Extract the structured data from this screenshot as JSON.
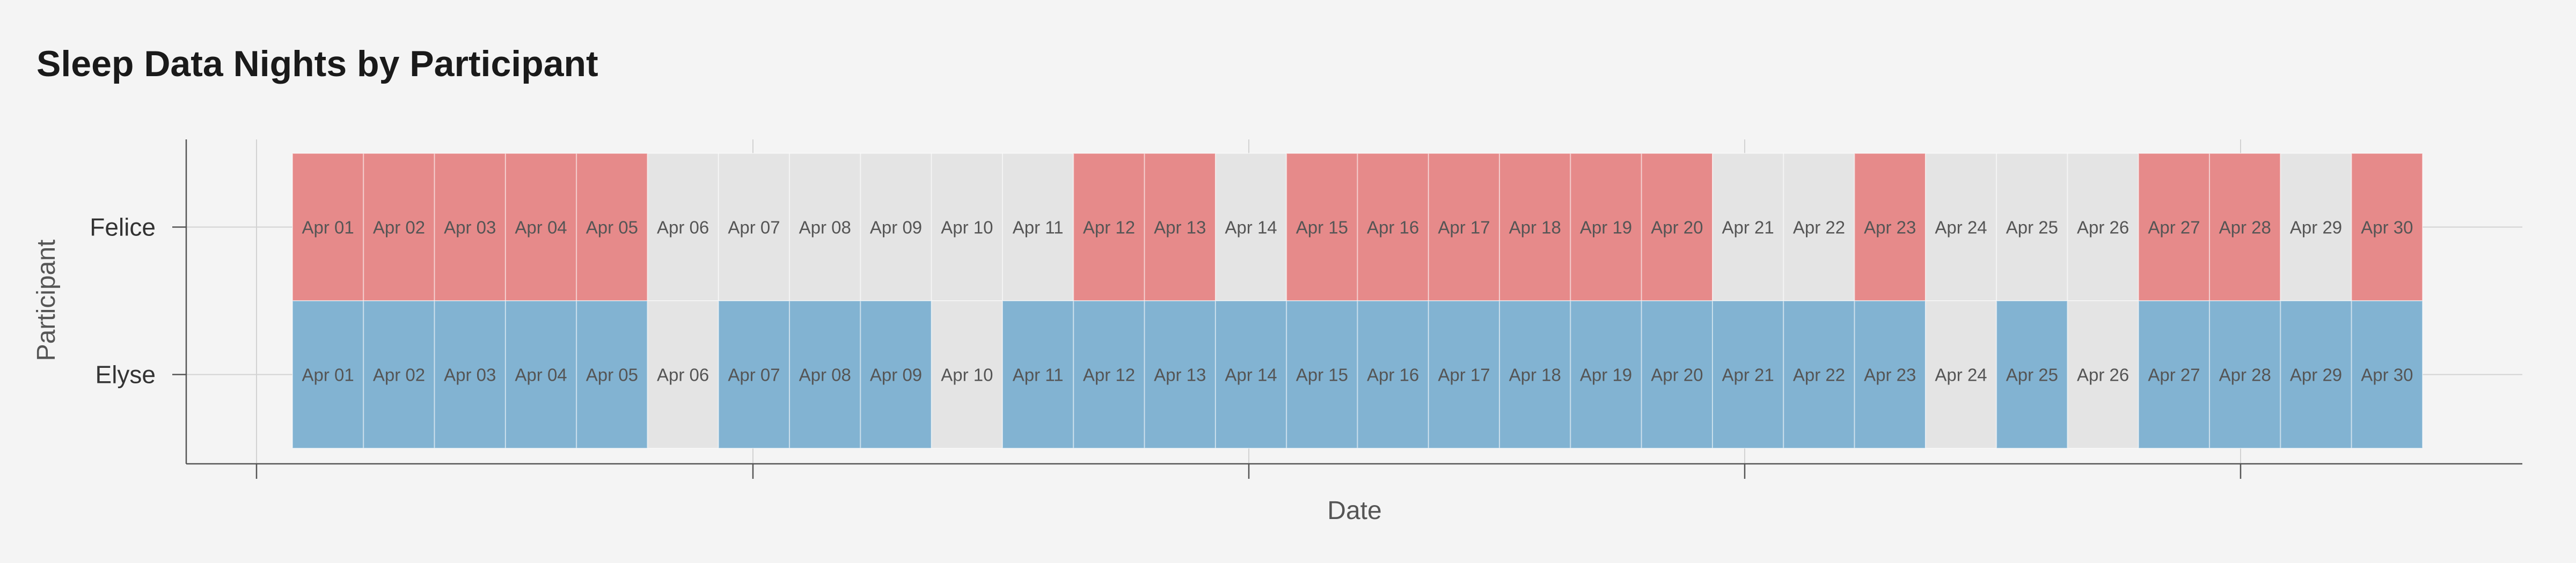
{
  "chart_data": {
    "type": "heatmap",
    "title": "Sleep Data Nights by Participant",
    "xlabel": "Date",
    "ylabel": "Participant",
    "rows": [
      "Felice",
      "Elyse"
    ],
    "dates": [
      "Apr 01",
      "Apr 02",
      "Apr 03",
      "Apr 04",
      "Apr 05",
      "Apr 06",
      "Apr 07",
      "Apr 08",
      "Apr 09",
      "Apr 10",
      "Apr 11",
      "Apr 12",
      "Apr 13",
      "Apr 14",
      "Apr 15",
      "Apr 16",
      "Apr 17",
      "Apr 18",
      "Apr 19",
      "Apr 20",
      "Apr 21",
      "Apr 22",
      "Apr 23",
      "Apr 24",
      "Apr 25",
      "Apr 26",
      "Apr 27",
      "Apr 28",
      "Apr 29",
      "Apr 30"
    ],
    "data_present": {
      "Felice": [
        1,
        1,
        1,
        1,
        1,
        0,
        0,
        0,
        0,
        0,
        0,
        1,
        1,
        0,
        1,
        1,
        1,
        1,
        1,
        1,
        0,
        0,
        1,
        0,
        0,
        0,
        1,
        1,
        0,
        1
      ],
      "Elyse": [
        1,
        1,
        1,
        1,
        1,
        0,
        1,
        1,
        1,
        0,
        1,
        1,
        1,
        1,
        1,
        1,
        1,
        1,
        1,
        1,
        1,
        1,
        1,
        0,
        1,
        0,
        1,
        1,
        1,
        1
      ]
    },
    "colors": {
      "Felice": "#e68a8a",
      "Elyse": "#82b3d2",
      "missing": "#e4e4e4"
    },
    "grid": true
  }
}
